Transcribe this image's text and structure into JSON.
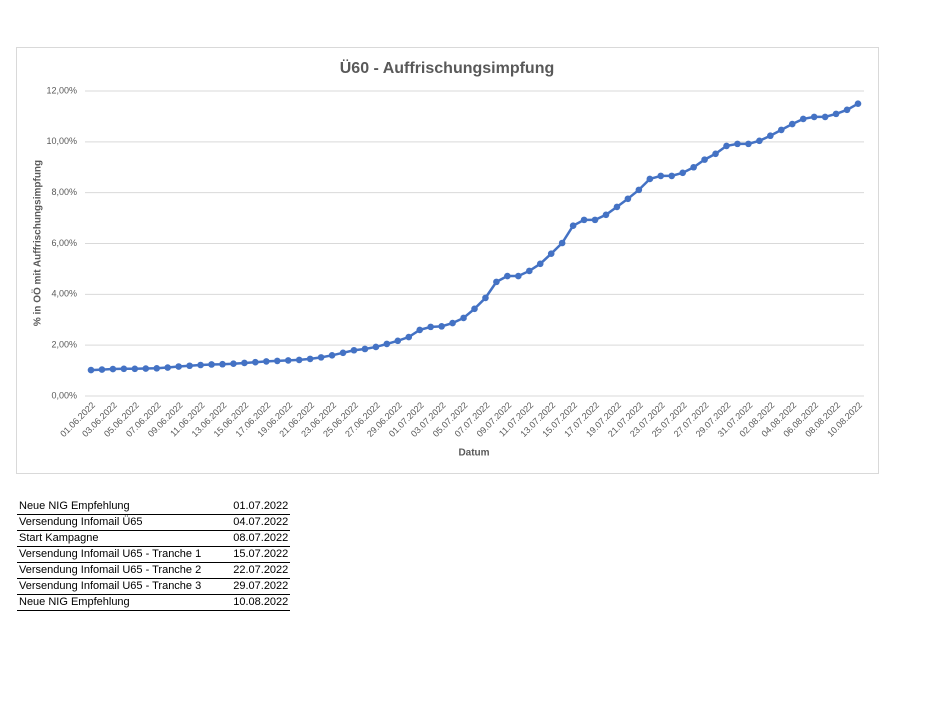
{
  "chart_data": {
    "type": "line",
    "title": "Ü60 - Auffrischungsimpfung",
    "x_label": "Datum",
    "y_label": "% in OÖ mit Auffrischungsimpfung",
    "categories": [
      "01.06.2022",
      null,
      "03.06.2022",
      null,
      "05.06.2022",
      null,
      "07.06.2022",
      null,
      "09.06.2022",
      null,
      "11.06.2022",
      null,
      "13.06.2022",
      null,
      "15.06.2022",
      null,
      "17.06.2022",
      null,
      "19.06.2022",
      null,
      "21.06.2022",
      null,
      "23.06.2022",
      null,
      "25.06.2022",
      null,
      "27.06.2022",
      null,
      "29.06.2022",
      null,
      "01.07.2022",
      null,
      "03.07.2022",
      null,
      "05.07.2022",
      null,
      "07.07.2022",
      null,
      "09.07.2022",
      null,
      "11.07.2022",
      null,
      "13.07.2022",
      null,
      "15.07.2022",
      null,
      "17.07.2022",
      null,
      "19.07.2022",
      null,
      "21.07.2022",
      null,
      "23.07.2022",
      null,
      "25.07.2022",
      null,
      "27.07.2022",
      null,
      "29.07.2022",
      null,
      "31.07.2022",
      null,
      "02.08.2022",
      null,
      "04.08.2022",
      null,
      "06.08.2022",
      null,
      "08.08.2022",
      null,
      "10.08.2022"
    ],
    "series": [
      {
        "name": "Ü60",
        "color": "#4472c4",
        "values": [
          1.02,
          1.04,
          1.06,
          1.07,
          1.07,
          1.08,
          1.09,
          1.12,
          1.16,
          1.19,
          1.22,
          1.24,
          1.25,
          1.27,
          1.3,
          1.33,
          1.36,
          1.38,
          1.4,
          1.42,
          1.46,
          1.52,
          1.6,
          1.7,
          1.8,
          1.85,
          1.93,
          2.05,
          2.17,
          2.32,
          2.6,
          2.72,
          2.74,
          2.87,
          3.07,
          3.43,
          3.86,
          4.49,
          4.72,
          4.72,
          4.92,
          5.2,
          5.6,
          6.02,
          6.7,
          6.93,
          6.93,
          7.13,
          7.44,
          7.76,
          8.11,
          8.54,
          8.66,
          8.66,
          8.78,
          9.0,
          9.3,
          9.53,
          9.84,
          9.92,
          9.92,
          10.04,
          10.24,
          10.47,
          10.7,
          10.9,
          10.98,
          10.98,
          11.1,
          11.26,
          11.5
        ]
      }
    ],
    "ylim": [
      0,
      12
    ],
    "yticks": [
      {
        "value": 0,
        "label": "0,00%"
      },
      {
        "value": 2,
        "label": "2,00%"
      },
      {
        "value": 4,
        "label": "4,00%"
      },
      {
        "value": 6,
        "label": "6,00%"
      },
      {
        "value": 8,
        "label": "8,00%"
      },
      {
        "value": 10,
        "label": "10,00%"
      },
      {
        "value": 12,
        "label": "12,00%"
      }
    ],
    "grid": true
  },
  "table": {
    "rows": [
      [
        "Neue NIG Empfehlung",
        "01.07.2022"
      ],
      [
        "Versendung Infomail Ü65",
        "04.07.2022"
      ],
      [
        "Start Kampagne",
        "08.07.2022"
      ],
      [
        "Versendung Infomail U65 - Tranche 1",
        "15.07.2022"
      ],
      [
        "Versendung Infomail U65 - Tranche 2",
        "22.07.2022"
      ],
      [
        "Versendung Infomail U65 - Tranche 3",
        "29.07.2022"
      ],
      [
        "Neue NIG Empfehlung",
        "10.08.2022"
      ]
    ]
  }
}
